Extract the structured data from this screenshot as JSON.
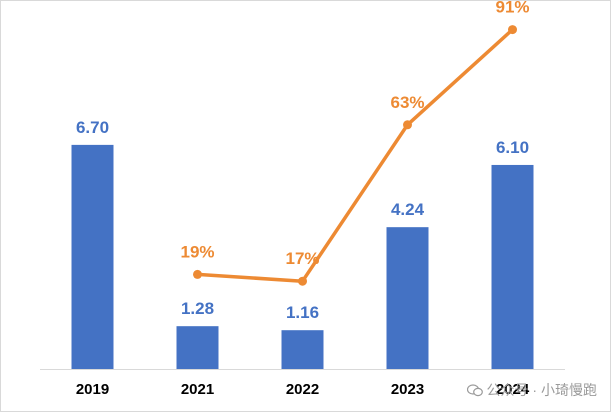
{
  "chart_data": {
    "type": "bar",
    "categories": [
      "2019",
      "2021",
      "2022",
      "2023",
      "2024"
    ],
    "series": [
      {
        "type": "bar",
        "values": [
          6.7,
          1.28,
          1.16,
          4.24,
          6.1
        ],
        "labels": [
          "6.70",
          "1.28",
          "1.16",
          "4.24",
          "6.10"
        ],
        "color": "#4472c4"
      },
      {
        "type": "line",
        "values": [
          null,
          19,
          17,
          63,
          91
        ],
        "labels": [
          "",
          "19%",
          "17%",
          "63%",
          "91%"
        ],
        "color": "#ed8a33"
      }
    ],
    "y_range": [
      0,
      10
    ],
    "y2_range": [
      0,
      100
    ],
    "grid": false,
    "legend": "none"
  },
  "watermark": {
    "text": "公众号 · 小琦慢跑",
    "icon": "wechat-icon"
  }
}
